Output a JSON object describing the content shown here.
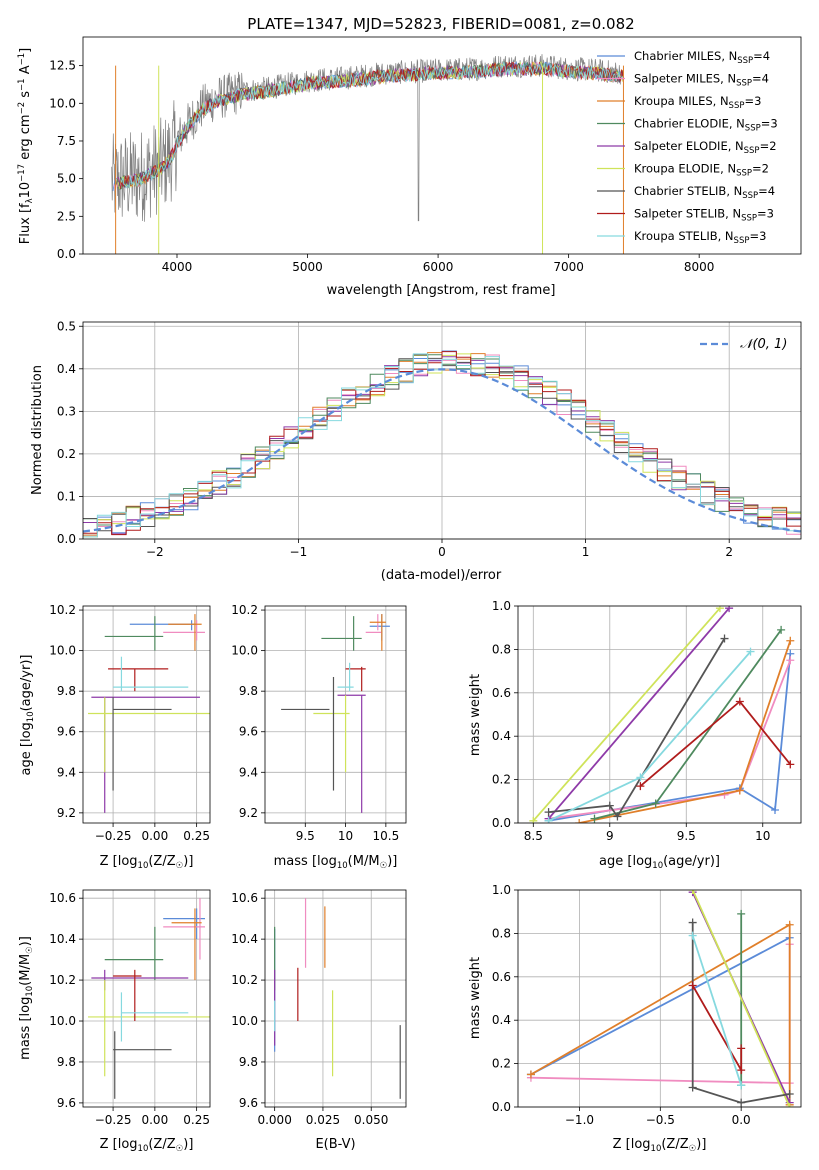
{
  "figure": {
    "title": "PLATE=1347, MJD=52823, FIBERID=0081, z=0.082"
  },
  "chart_data": [
    {
      "id": "spectrum",
      "type": "line",
      "title": "PLATE=1347, MJD=52823, FIBERID=0081, z=0.082",
      "xlabel": "wavelength [Angstrom, rest frame]",
      "ylabel_parts": [
        "Flux [f",
        "λ",
        "10",
        "−17",
        " erg cm",
        "−2",
        " s",
        "−1",
        " A",
        "−1",
        "]"
      ],
      "xlim": [
        3280,
        8780
      ],
      "ylim": [
        0,
        14.4
      ],
      "xticks": [
        4000,
        5000,
        6000,
        7000,
        8000
      ],
      "yticks": [
        0.0,
        2.5,
        5.0,
        7.5,
        10.0,
        12.5
      ],
      "grid": false,
      "legend_position": "right",
      "series": [
        {
          "name": "Chabrier MILES, N_SSP=4",
          "label_main": "Chabrier MILES, N",
          "label_sub": "SSP",
          "label_tail": "=4",
          "color": "#5b8bd8"
        },
        {
          "name": "Salpeter MILES, N_SSP=4",
          "label_main": "Salpeter MILES, N",
          "label_sub": "SSP",
          "label_tail": "=4",
          "color": "#f08cc0"
        },
        {
          "name": "Kroupa MILES, N_SSP=3",
          "label_main": "Kroupa MILES, N",
          "label_sub": "SSP",
          "label_tail": "=3",
          "color": "#e07f2a"
        },
        {
          "name": "Chabrier ELODIE, N_SSP=3",
          "label_main": "Chabrier ELODIE, N",
          "label_sub": "SSP",
          "label_tail": "=3",
          "color": "#4f8a5f"
        },
        {
          "name": "Salpeter ELODIE, N_SSP=2",
          "label_main": "Salpeter ELODIE, N",
          "label_sub": "SSP",
          "label_tail": "=2",
          "color": "#8e3aa8"
        },
        {
          "name": "Kroupa ELODIE, N_SSP=2",
          "label_main": "Kroupa ELODIE, N",
          "label_sub": "SSP",
          "label_tail": "=2",
          "color": "#cfe35a"
        },
        {
          "name": "Chabrier STELIB, N_SSP=4",
          "label_main": "Chabrier STELIB, N",
          "label_sub": "SSP",
          "label_tail": "=4",
          "color": "#555555"
        },
        {
          "name": "Salpeter STELIB, N_SSP=3",
          "label_main": "Salpeter STELIB, N",
          "label_sub": "SSP",
          "label_tail": "=3",
          "color": "#b01c1c"
        },
        {
          "name": "Kroupa STELIB, N_SSP=3",
          "label_main": "Kroupa STELIB, N",
          "label_sub": "SSP",
          "label_tail": "=3",
          "color": "#86d9df"
        }
      ],
      "continuum": {
        "x": [
          3500,
          3600,
          3700,
          3800,
          3900,
          3950,
          4000,
          4100,
          4200,
          4300,
          4500,
          4700,
          5000,
          5300,
          5600,
          6000,
          6300,
          6500,
          6800,
          7000,
          7200,
          7400
        ],
        "y": [
          4.8,
          5.0,
          5.1,
          5.5,
          6.0,
          6.5,
          7.5,
          8.8,
          9.8,
          10.3,
          10.8,
          11.0,
          11.5,
          11.7,
          12.0,
          12.2,
          12.3,
          12.5,
          12.5,
          12.3,
          12.2,
          12.0
        ]
      }
    },
    {
      "id": "residual-histogram",
      "type": "histogram",
      "xlabel": "(data-model)/error",
      "ylabel": "Normed distribution",
      "xlim": [
        -2.5,
        2.5
      ],
      "ylim": [
        0,
        0.51
      ],
      "xticks": [
        -2,
        -1,
        0,
        1,
        2
      ],
      "xtick_labels": [
        "−2",
        "−1",
        "0",
        "1",
        "2"
      ],
      "yticks": [
        0.0,
        0.1,
        0.2,
        0.3,
        0.4,
        0.5
      ],
      "grid": true,
      "bin_width": 0.1,
      "reference_curve": {
        "name": "N(0,1)",
        "label": "𝒩(0, 1)",
        "color": "#5b8bd8",
        "style": "dashed"
      },
      "legend_position": "top-right"
    },
    {
      "id": "age-vs-metallicity",
      "type": "errorbar",
      "xlabel_parts": [
        "Z [log",
        "10",
        "(Z/Z",
        "☉",
        ")]"
      ],
      "ylabel_parts": [
        "age  [log",
        "10",
        "(age/yr)]"
      ],
      "xlim": [
        -0.43,
        0.33
      ],
      "ylim": [
        9.15,
        10.22
      ],
      "xticks": [
        -0.25,
        0.0,
        0.25
      ],
      "xtick_labels": [
        "−0.25",
        "0.00",
        "0.25"
      ],
      "yticks": [
        9.2,
        9.4,
        9.6,
        9.8,
        10.0,
        10.2
      ],
      "grid": true
    },
    {
      "id": "age-vs-mass",
      "type": "errorbar",
      "xlabel_parts": [
        "mass [log",
        "10",
        "(M/M",
        "☉",
        ")]"
      ],
      "ylabel": "",
      "xlim": [
        9.0,
        10.75
      ],
      "ylim": [
        9.15,
        10.22
      ],
      "xticks": [
        9.5,
        10.0,
        10.5
      ],
      "yticks": [
        9.2,
        9.4,
        9.6,
        9.8,
        10.0,
        10.2
      ],
      "grid": true
    },
    {
      "id": "massweight-vs-age",
      "type": "line",
      "xlabel_parts": [
        "age  [log",
        "10",
        "(age/yr)]"
      ],
      "ylabel": "mass weight",
      "xlim": [
        8.4,
        10.25
      ],
      "ylim": [
        0,
        1.0
      ],
      "xticks": [
        8.5,
        9.0,
        9.5,
        10.0
      ],
      "yticks": [
        0.0,
        0.2,
        0.4,
        0.6,
        0.8,
        1.0
      ],
      "grid": true,
      "series": [
        {
          "name": "Chabrier MILES",
          "color": "#5b8bd8",
          "x": [
            8.6,
            9.85,
            10.08,
            10.18
          ],
          "y": [
            0.01,
            0.16,
            0.06,
            0.78
          ]
        },
        {
          "name": "Salpeter MILES",
          "color": "#f08cc0",
          "x": [
            8.6,
            9.75,
            9.85,
            10.18
          ],
          "y": [
            0.02,
            0.13,
            0.15,
            0.75
          ]
        },
        {
          "name": "Kroupa MILES",
          "color": "#e07f2a",
          "x": [
            8.8,
            9.85,
            10.18
          ],
          "y": [
            0.0,
            0.15,
            0.84
          ]
        },
        {
          "name": "Chabrier ELODIE",
          "color": "#4f8a5f",
          "x": [
            8.9,
            9.3,
            10.12
          ],
          "y": [
            0.02,
            0.09,
            0.89
          ]
        },
        {
          "name": "Salpeter ELODIE",
          "color": "#8e3aa8",
          "x": [
            8.6,
            9.78
          ],
          "y": [
            0.02,
            0.99
          ]
        },
        {
          "name": "Kroupa ELODIE",
          "color": "#cfe35a",
          "x": [
            8.5,
            9.72
          ],
          "y": [
            0.01,
            0.99
          ]
        },
        {
          "name": "Chabrier STELIB",
          "color": "#555555",
          "x": [
            8.6,
            9.0,
            9.05,
            9.75
          ],
          "y": [
            0.05,
            0.08,
            0.03,
            0.85
          ]
        },
        {
          "name": "Salpeter STELIB",
          "color": "#b01c1c",
          "x": [
            9.2,
            9.85,
            10.18
          ],
          "y": [
            0.17,
            0.56,
            0.27
          ]
        },
        {
          "name": "Kroupa STELIB",
          "color": "#86d9df",
          "x": [
            8.6,
            9.2,
            9.92
          ],
          "y": [
            0.01,
            0.21,
            0.79
          ]
        }
      ]
    },
    {
      "id": "mass-vs-metallicity",
      "type": "errorbar",
      "xlabel_parts": [
        "Z [log",
        "10",
        "(Z/Z",
        "☉",
        ")]"
      ],
      "ylabel_parts": [
        "mass [log",
        "10",
        "(M/M",
        "☉",
        ")]"
      ],
      "xlim": [
        -0.43,
        0.33
      ],
      "ylim": [
        9.58,
        10.64
      ],
      "xticks": [
        -0.25,
        0.0,
        0.25
      ],
      "xtick_labels": [
        "−0.25",
        "0.00",
        "0.25"
      ],
      "yticks": [
        9.6,
        9.8,
        10.0,
        10.2,
        10.4,
        10.6
      ],
      "grid": true
    },
    {
      "id": "mass-vs-ebv",
      "type": "errorbar",
      "xlabel": "E(B-V)",
      "ylabel": "",
      "xlim": [
        -0.005,
        0.068
      ],
      "ylim": [
        9.58,
        10.64
      ],
      "xticks": [
        0.0,
        0.025,
        0.05
      ],
      "xtick_labels": [
        "0.000",
        "0.025",
        "0.050"
      ],
      "yticks": [
        9.6,
        9.8,
        10.0,
        10.2,
        10.4,
        10.6
      ],
      "grid": true
    },
    {
      "id": "massweight-vs-metallicity",
      "type": "line",
      "xlabel_parts": [
        "Z [log",
        "10",
        "(Z/Z",
        "☉",
        ")]"
      ],
      "ylabel": "mass weight",
      "xlim": [
        -1.38,
        0.37
      ],
      "ylim": [
        0,
        1.0
      ],
      "xticks": [
        -1.0,
        -0.5,
        0.0
      ],
      "xtick_labels": [
        "−1.0",
        "−0.5",
        "0.0"
      ],
      "yticks": [
        0.0,
        0.2,
        0.4,
        0.6,
        0.8,
        1.0
      ],
      "grid": true,
      "series": [
        {
          "name": "Chabrier MILES",
          "color": "#5b8bd8",
          "x": [
            -1.3,
            0.3
          ],
          "y": [
            0.15,
            0.78
          ]
        },
        {
          "name": "Salpeter MILES",
          "color": "#f08cc0",
          "x": [
            -1.3,
            0.3,
            0.3
          ],
          "y": [
            0.135,
            0.11,
            0.75
          ]
        },
        {
          "name": "Kroupa MILES",
          "color": "#e07f2a",
          "x": [
            -1.3,
            0.3,
            0.3
          ],
          "y": [
            0.15,
            0.84,
            0.01
          ]
        },
        {
          "name": "Chabrier ELODIE",
          "color": "#4f8a5f",
          "x": [
            0.0,
            0.0
          ],
          "y": [
            0.89,
            0.1
          ]
        },
        {
          "name": "Salpeter ELODIE",
          "color": "#8e3aa8",
          "x": [
            -0.3,
            0.3
          ],
          "y": [
            0.99,
            0.02
          ]
        },
        {
          "name": "Kroupa ELODIE",
          "color": "#cfe35a",
          "x": [
            -0.3,
            0.3
          ],
          "y": [
            1.0,
            0.0
          ]
        },
        {
          "name": "Chabrier STELIB",
          "color": "#555555",
          "x": [
            -0.3,
            -0.3,
            0.0,
            0.3
          ],
          "y": [
            0.85,
            0.09,
            0.02,
            0.06
          ]
        },
        {
          "name": "Salpeter STELIB",
          "color": "#b01c1c",
          "x": [
            -0.3,
            0.0,
            0.0
          ],
          "y": [
            0.56,
            0.17,
            0.27
          ]
        },
        {
          "name": "Kroupa STELIB",
          "color": "#86d9df",
          "x": [
            -0.3,
            0.0
          ],
          "y": [
            0.79,
            0.1
          ]
        }
      ]
    }
  ]
}
